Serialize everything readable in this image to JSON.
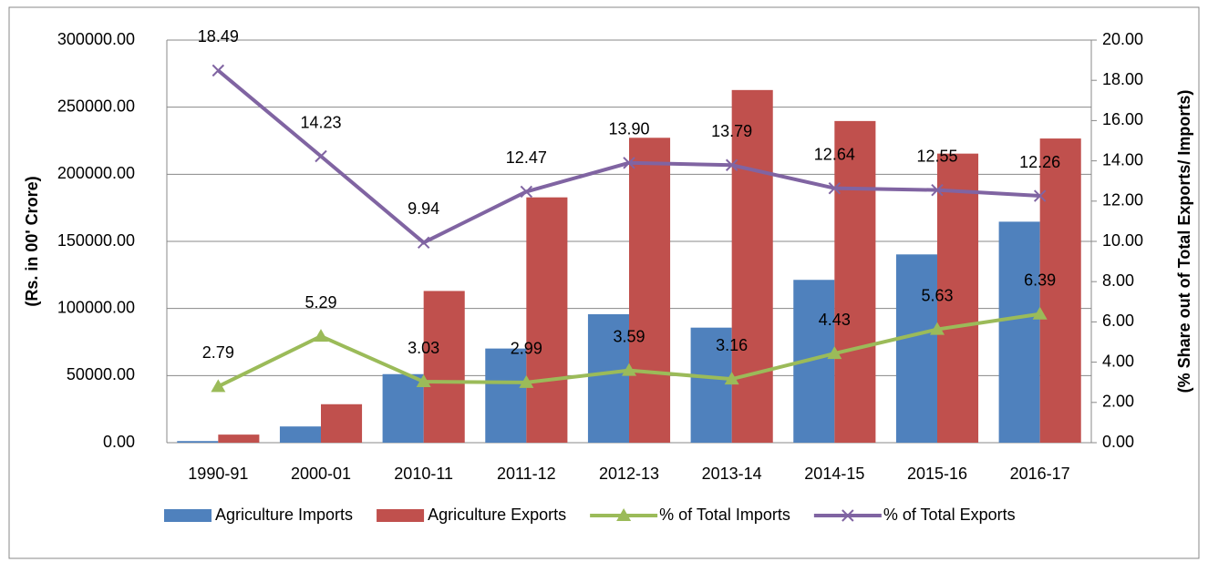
{
  "chart_data": {
    "type": "bar_line_combo",
    "categories": [
      "1990-91",
      "2000-01",
      "2010-11",
      "2011-12",
      "2012-13",
      "2013-14",
      "2014-15",
      "2015-16",
      "2016-17"
    ],
    "ylabel": "(Rs. in 00' Crore)",
    "y2label": "(% Share out of Total Exports/ Imports)",
    "ylim": [
      0,
      300000
    ],
    "yticks": [
      {
        "value": 0,
        "label": "0.00"
      },
      {
        "value": 50000,
        "label": "50000.00"
      },
      {
        "value": 100000,
        "label": "100000.00"
      },
      {
        "value": 150000,
        "label": "150000.00"
      },
      {
        "value": 200000,
        "label": "200000.00"
      },
      {
        "value": 250000,
        "label": "250000.00"
      },
      {
        "value": 300000,
        "label": "300000.00"
      }
    ],
    "y2lim": [
      0,
      20
    ],
    "y2ticks": [
      {
        "value": 0,
        "label": "0.00"
      },
      {
        "value": 2,
        "label": "2.00"
      },
      {
        "value": 4,
        "label": "4.00"
      },
      {
        "value": 6,
        "label": "6.00"
      },
      {
        "value": 8,
        "label": "8.00"
      },
      {
        "value": 10,
        "label": "10.00"
      },
      {
        "value": 12,
        "label": "12.00"
      },
      {
        "value": 14,
        "label": "14.00"
      },
      {
        "value": 16,
        "label": "16.00"
      },
      {
        "value": 18,
        "label": "18.00"
      },
      {
        "value": 20,
        "label": "20.00"
      }
    ],
    "grid": true,
    "legend": "bottom",
    "series": [
      {
        "name": "Agriculture Imports",
        "type": "bar",
        "color": "#4f81bd",
        "values": [
          1206,
          12086,
          51074,
          70165,
          95719,
          85727,
          121319,
          140289,
          164667
        ]
      },
      {
        "name": "Agriculture Exports",
        "type": "bar",
        "color": "#c0504d",
        "values": [
          6013,
          28657,
          113047,
          182801,
          227193,
          262779,
          239681,
          215396,
          226652
        ]
      },
      {
        "name": "% of Total Imports",
        "type": "line",
        "marker": "triangle",
        "axis": "y2",
        "color": "#9bbb59",
        "values": [
          2.79,
          5.29,
          3.03,
          2.99,
          3.59,
          3.16,
          4.43,
          5.63,
          6.39
        ],
        "value_labels": [
          "2.79",
          "5.29",
          "3.03",
          "2.99",
          "3.59",
          "3.16",
          "4.43",
          "5.63",
          "6.39"
        ]
      },
      {
        "name": "% of Total Exports",
        "type": "line",
        "marker": "x",
        "axis": "y2",
        "color": "#8064a2",
        "values": [
          18.49,
          14.23,
          9.94,
          12.47,
          13.9,
          13.79,
          12.64,
          12.55,
          12.26
        ],
        "value_labels": [
          "18.49",
          "14.23",
          "9.94",
          "12.47",
          "13.90",
          "13.79",
          "12.64",
          "12.55",
          "12.26"
        ]
      }
    ]
  }
}
